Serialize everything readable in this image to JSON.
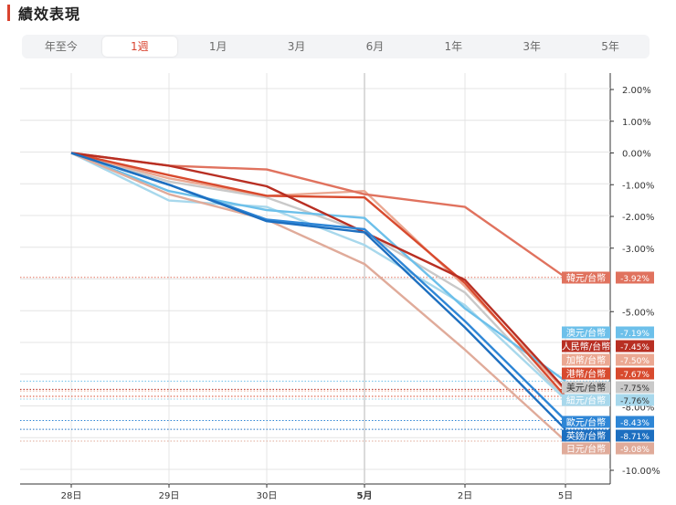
{
  "header": {
    "title": "績效表現"
  },
  "tabs": [
    {
      "label": "年至今",
      "active": false
    },
    {
      "label": "1週",
      "active": true
    },
    {
      "label": "1月",
      "active": false
    },
    {
      "label": "3月",
      "active": false
    },
    {
      "label": "6月",
      "active": false
    },
    {
      "label": "1年",
      "active": false
    },
    {
      "label": "3年",
      "active": false
    },
    {
      "label": "5年",
      "active": false
    }
  ],
  "chart_data": {
    "type": "line",
    "categories": [
      "28日",
      "29日",
      "30日",
      "5月",
      "2日",
      "5日"
    ],
    "bold_categories": [
      "5月"
    ],
    "ylim": [
      -10.5,
      2.5
    ],
    "yticks": [
      "2.00%",
      "1.00%",
      "0.00%",
      "-1.00%",
      "-2.00%",
      "-3.00%",
      "-5.00%",
      "-10.00%"
    ],
    "ytick_values": [
      2,
      1,
      0,
      -1,
      -2,
      -3,
      -5,
      -10
    ],
    "partial_ticks": [
      "-8.00%"
    ],
    "partial_tick_values": [
      -8
    ],
    "series": [
      {
        "name": "韓元/台幣",
        "label": "-3.92%",
        "color": "#e0725e",
        "values": [
          0,
          -0.4,
          -0.52,
          -1.3,
          -1.7,
          -3.92
        ]
      },
      {
        "name": "澳元/台幣",
        "label": "-7.19%",
        "color": "#6dc0ea",
        "values": [
          0,
          -1.2,
          -1.8,
          -2.05,
          -4.9,
          -7.19
        ]
      },
      {
        "name": "人民幣/台幣",
        "label": "-7.45%",
        "color": "#b82f23",
        "values": [
          0,
          -0.4,
          -1.05,
          -2.5,
          -4.0,
          -7.45
        ]
      },
      {
        "name": "加幣/台幣",
        "label": "-7.50%",
        "color": "#eba892",
        "values": [
          0,
          -0.8,
          -1.35,
          -1.2,
          -4.2,
          -7.5
        ]
      },
      {
        "name": "港幣/台幣",
        "label": "-7.67%",
        "color": "#d84a2e",
        "values": [
          0,
          -0.7,
          -1.35,
          -1.4,
          -4.1,
          -7.67
        ]
      },
      {
        "name": "美元/台幣",
        "label": "-7.75%",
        "color": "#c9c9c9",
        "values": [
          0,
          -0.9,
          -1.4,
          -2.5,
          -4.4,
          -7.75
        ]
      },
      {
        "name": "紐元/台幣",
        "label": "-7.76%",
        "color": "#a8d8ec",
        "values": [
          0,
          -1.5,
          -1.7,
          -2.9,
          -4.8,
          -7.76
        ]
      },
      {
        "name": "歐元/台幣",
        "label": "-8.43%",
        "color": "#2e86d6",
        "values": [
          0,
          -1.0,
          -2.1,
          -2.4,
          -5.3,
          -8.43
        ]
      },
      {
        "name": "英鎊/台幣",
        "label": "-8.71%",
        "color": "#1d6fc0",
        "values": [
          0,
          -1.0,
          -2.15,
          -2.5,
          -5.5,
          -8.71
        ]
      },
      {
        "name": "日元/台幣",
        "label": "-9.08%",
        "color": "#e0ab9a",
        "values": [
          0,
          -1.3,
          -2.1,
          -3.5,
          -6.2,
          -9.08
        ]
      }
    ]
  }
}
